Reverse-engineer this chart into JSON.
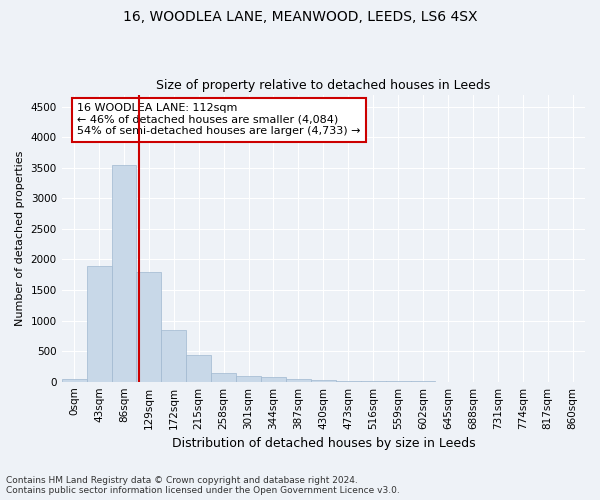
{
  "title1": "16, WOODLEA LANE, MEANWOOD, LEEDS, LS6 4SX",
  "title2": "Size of property relative to detached houses in Leeds",
  "xlabel": "Distribution of detached houses by size in Leeds",
  "ylabel": "Number of detached properties",
  "bin_labels": [
    "0sqm",
    "43sqm",
    "86sqm",
    "129sqm",
    "172sqm",
    "215sqm",
    "258sqm",
    "301sqm",
    "344sqm",
    "387sqm",
    "430sqm",
    "473sqm",
    "516sqm",
    "559sqm",
    "602sqm",
    "645sqm",
    "688sqm",
    "731sqm",
    "774sqm",
    "817sqm",
    "860sqm"
  ],
  "bar_heights": [
    50,
    1900,
    3550,
    1800,
    850,
    430,
    150,
    100,
    70,
    50,
    30,
    15,
    10,
    5,
    3,
    2,
    1,
    1,
    1,
    0,
    0
  ],
  "bar_color": "#c8d8e8",
  "bar_edgecolor": "#a0b8d0",
  "vline_x_bin": 2.6,
  "vline_color": "#cc0000",
  "annotation_text": "16 WOODLEA LANE: 112sqm\n← 46% of detached houses are smaller (4,084)\n54% of semi-detached houses are larger (4,733) →",
  "annotation_box_facecolor": "#ffffff",
  "annotation_box_edgecolor": "#cc0000",
  "ylim": [
    0,
    4700
  ],
  "yticks": [
    0,
    500,
    1000,
    1500,
    2000,
    2500,
    3000,
    3500,
    4000,
    4500
  ],
  "footnote1": "Contains HM Land Registry data © Crown copyright and database right 2024.",
  "footnote2": "Contains public sector information licensed under the Open Government Licence v3.0.",
  "bg_color": "#eef2f7",
  "grid_color": "#ffffff",
  "title1_fontsize": 10,
  "title2_fontsize": 9,
  "xlabel_fontsize": 9,
  "ylabel_fontsize": 8,
  "tick_fontsize": 7.5,
  "footnote_fontsize": 6.5
}
